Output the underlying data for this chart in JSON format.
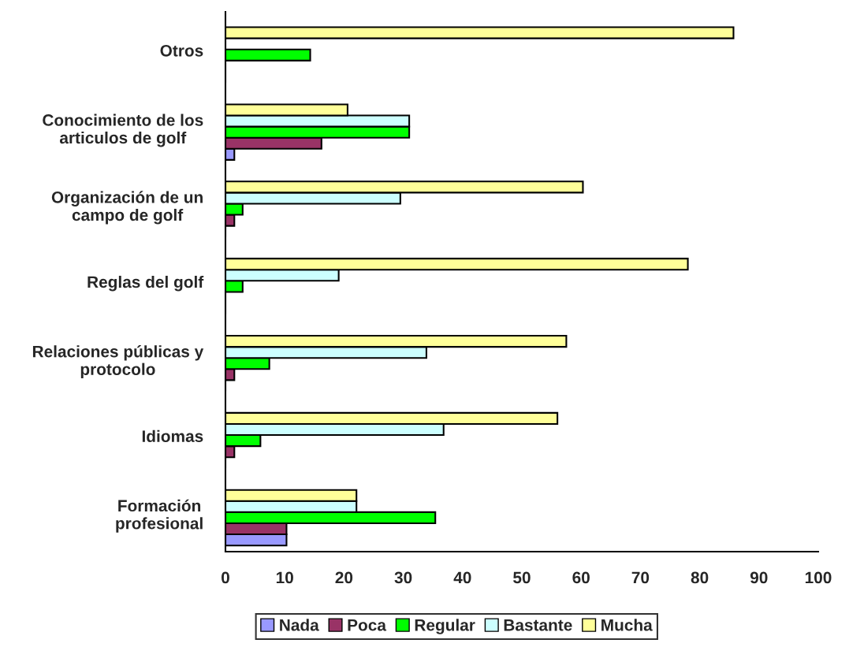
{
  "chart_data": {
    "type": "bar",
    "orientation": "horizontal",
    "categories": [
      "Otros",
      "Conocimiento de los\narticulos de golf",
      "Organización de un\ncampo de golf",
      "Reglas del golf",
      "Relaciones públicas y\nprotocolo",
      "Idiomas",
      "Formación\nprofesional"
    ],
    "series": [
      {
        "name": "Nada",
        "color": "#9999ff",
        "values": [
          0,
          1.5,
          0,
          0,
          0,
          0,
          10.3
        ]
      },
      {
        "name": "Poca",
        "color": "#993366",
        "values": [
          0,
          16.2,
          1.5,
          0,
          1.5,
          1.5,
          10.3
        ]
      },
      {
        "name": "Regular",
        "color": "#00ff00",
        "values": [
          14.3,
          31.0,
          2.9,
          2.9,
          7.4,
          5.9,
          35.4
        ]
      },
      {
        "name": "Bastante",
        "color": "#ccffff",
        "values": [
          0,
          31.0,
          29.5,
          19.1,
          33.9,
          36.8,
          22.1
        ]
      },
      {
        "name": "Mucha",
        "color": "#ffff99",
        "values": [
          85.7,
          20.6,
          60.3,
          78.0,
          57.5,
          56.0,
          22.1
        ]
      }
    ],
    "xlim": [
      0,
      100
    ],
    "xticks": [
      0,
      10,
      20,
      30,
      40,
      50,
      60,
      70,
      80,
      90,
      100
    ],
    "grid": false,
    "legend": "bottom"
  }
}
